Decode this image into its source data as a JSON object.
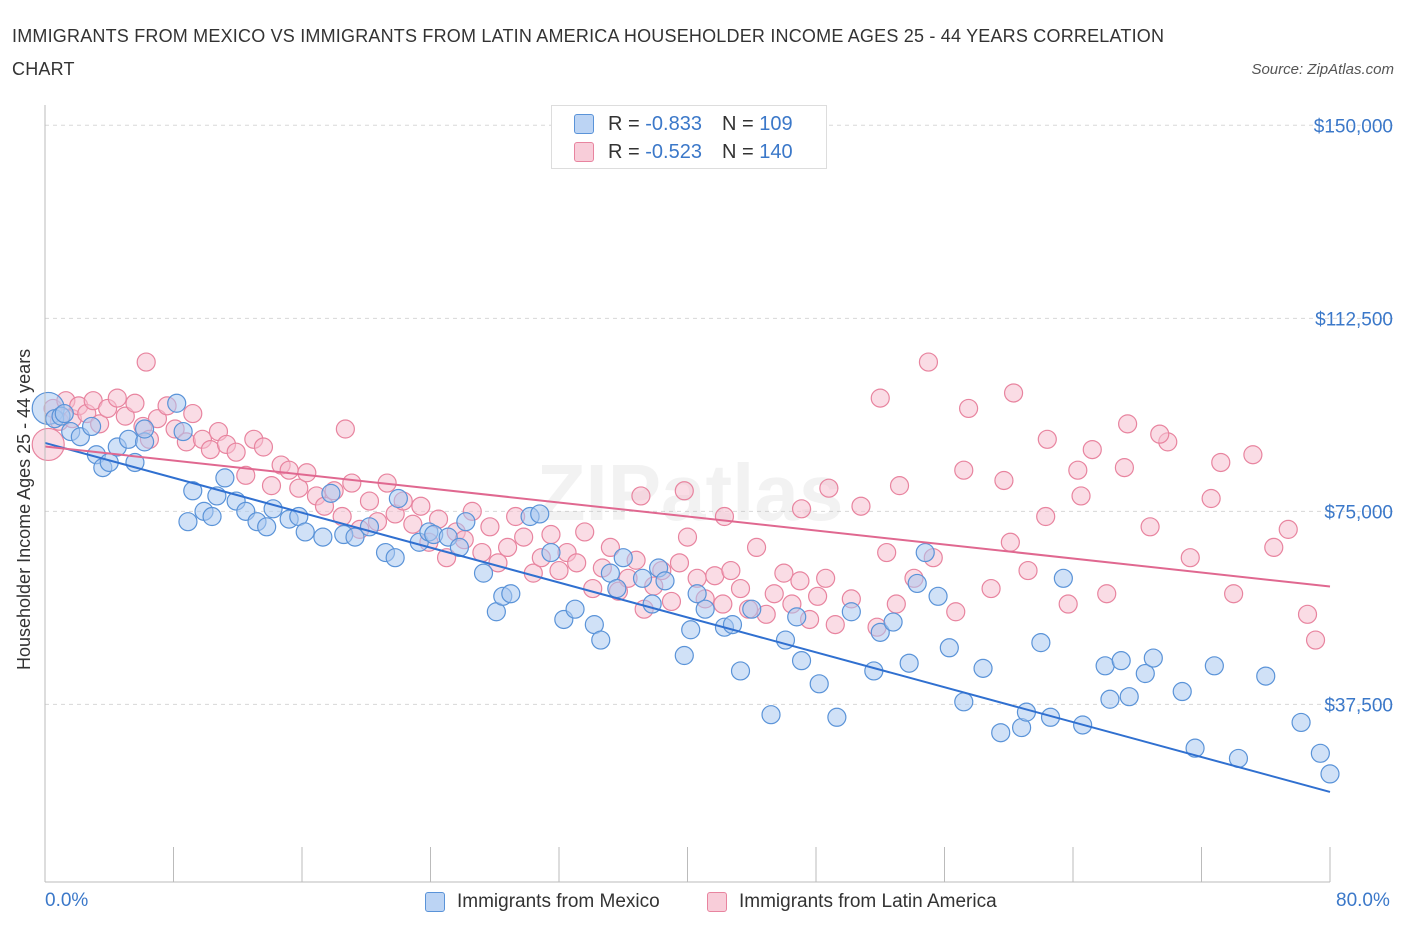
{
  "title": "IMMIGRANTS FROM MEXICO VS IMMIGRANTS FROM LATIN AMERICA HOUSEHOLDER INCOME AGES 25 - 44 YEARS CORRELATION CHART",
  "source": "Source: ZipAtlas.com",
  "legend": {
    "rows": [
      {
        "r_label": "R =",
        "r_value": "-0.833",
        "n_label": "N =",
        "n_value": "109"
      },
      {
        "r_label": "R =",
        "r_value": "-0.523",
        "n_label": "N =",
        "n_value": "140"
      }
    ]
  },
  "colors": {
    "mexico_fill": "#a9c8f0",
    "mexico_stroke": "#5a93d8",
    "mexico_line": "#3070d0",
    "latam_fill": "#f6bfd0",
    "latam_stroke": "#e8849f",
    "latam_line": "#e06890",
    "tick_text": "#3b78c9",
    "grid": "#d8d8d8"
  },
  "chart_data": {
    "type": "scatter",
    "title": "IMMIGRANTS FROM MEXICO VS IMMIGRANTS FROM LATIN AMERICA HOUSEHOLDER INCOME AGES 25 - 44 YEARS CORRELATION CHART",
    "xlabel": "",
    "ylabel": "Householder Income Ages 25 - 44 years",
    "xlim": [
      0,
      80
    ],
    "ylim": [
      3000,
      152000
    ],
    "x_tick_labels": [
      "0.0%",
      "80.0%"
    ],
    "y_ticks": [
      37500,
      75000,
      112500,
      150000
    ],
    "y_tick_labels": [
      "$37,500",
      "$75,000",
      "$112,500",
      "$150,000"
    ],
    "grid": true,
    "watermark": "ZIPatlas",
    "series": [
      {
        "name": "Immigrants from Mexico",
        "r": -0.833,
        "n": 109,
        "trend": [
          [
            0,
            88300
          ],
          [
            80,
            20500
          ]
        ],
        "points": [
          [
            0.2,
            95000
          ],
          [
            0.6,
            93000
          ],
          [
            1.0,
            93500
          ],
          [
            1.6,
            90500
          ],
          [
            2.2,
            89500
          ],
          [
            2.9,
            91500
          ],
          [
            1.2,
            94000
          ],
          [
            3.2,
            86000
          ],
          [
            3.6,
            83500
          ],
          [
            4.0,
            84500
          ],
          [
            4.5,
            87500
          ],
          [
            5.2,
            89000
          ],
          [
            5.6,
            84500
          ],
          [
            6.2,
            88500
          ],
          [
            6.2,
            91000
          ],
          [
            8.2,
            96000
          ],
          [
            8.6,
            90500
          ],
          [
            8.9,
            73000
          ],
          [
            9.2,
            79000
          ],
          [
            9.9,
            75000
          ],
          [
            10.4,
            74000
          ],
          [
            10.7,
            78000
          ],
          [
            11.2,
            81500
          ],
          [
            11.9,
            77000
          ],
          [
            12.5,
            75000
          ],
          [
            13.2,
            73000
          ],
          [
            13.8,
            72000
          ],
          [
            14.2,
            75500
          ],
          [
            15.2,
            73500
          ],
          [
            15.8,
            74000
          ],
          [
            16.2,
            71000
          ],
          [
            17.3,
            70000
          ],
          [
            17.8,
            78500
          ],
          [
            18.6,
            70500
          ],
          [
            19.3,
            70000
          ],
          [
            20.2,
            72000
          ],
          [
            21.2,
            67000
          ],
          [
            21.8,
            66000
          ],
          [
            22.0,
            77500
          ],
          [
            23.3,
            69000
          ],
          [
            23.9,
            71000
          ],
          [
            24.2,
            70500
          ],
          [
            25.1,
            70000
          ],
          [
            25.8,
            68000
          ],
          [
            26.2,
            73000
          ],
          [
            27.3,
            63000
          ],
          [
            28.1,
            55500
          ],
          [
            28.5,
            58500
          ],
          [
            29.0,
            59000
          ],
          [
            30.2,
            74000
          ],
          [
            30.8,
            74500
          ],
          [
            31.5,
            67000
          ],
          [
            32.3,
            54000
          ],
          [
            33.0,
            56000
          ],
          [
            34.2,
            53000
          ],
          [
            34.6,
            50000
          ],
          [
            35.2,
            63000
          ],
          [
            35.6,
            60000
          ],
          [
            36.0,
            66000
          ],
          [
            37.2,
            62000
          ],
          [
            37.8,
            57000
          ],
          [
            38.2,
            64000
          ],
          [
            38.6,
            61500
          ],
          [
            39.8,
            47000
          ],
          [
            40.2,
            52000
          ],
          [
            40.6,
            59000
          ],
          [
            41.1,
            56000
          ],
          [
            42.3,
            52500
          ],
          [
            42.8,
            53000
          ],
          [
            43.3,
            44000
          ],
          [
            44.0,
            56000
          ],
          [
            45.2,
            35500
          ],
          [
            46.1,
            50000
          ],
          [
            46.8,
            54500
          ],
          [
            47.1,
            46000
          ],
          [
            48.2,
            41500
          ],
          [
            49.3,
            35000
          ],
          [
            50.2,
            55500
          ],
          [
            51.6,
            44000
          ],
          [
            52.0,
            51500
          ],
          [
            52.8,
            53500
          ],
          [
            53.8,
            45500
          ],
          [
            54.3,
            61000
          ],
          [
            55.6,
            58500
          ],
          [
            56.3,
            48500
          ],
          [
            57.2,
            38000
          ],
          [
            58.4,
            44500
          ],
          [
            59.5,
            32000
          ],
          [
            60.8,
            33000
          ],
          [
            61.1,
            36000
          ],
          [
            62.0,
            49500
          ],
          [
            62.6,
            35000
          ],
          [
            63.4,
            62000
          ],
          [
            64.6,
            33500
          ],
          [
            66.0,
            45000
          ],
          [
            66.3,
            38500
          ],
          [
            67.0,
            46000
          ],
          [
            67.5,
            39000
          ],
          [
            68.5,
            43500
          ],
          [
            69.0,
            46500
          ],
          [
            70.8,
            40000
          ],
          [
            71.6,
            29000
          ],
          [
            72.8,
            45000
          ],
          [
            74.3,
            27000
          ],
          [
            76.0,
            43000
          ],
          [
            78.2,
            34000
          ],
          [
            79.4,
            28000
          ],
          [
            80.0,
            24000
          ],
          [
            54.8,
            67000
          ]
        ]
      },
      {
        "name": "Immigrants from Latin America",
        "r": -0.523,
        "n": 140,
        "trend": [
          [
            0,
            87600
          ],
          [
            80,
            60400
          ]
        ],
        "points": [
          [
            0.2,
            88000
          ],
          [
            0.5,
            95000
          ],
          [
            0.9,
            92500
          ],
          [
            1.3,
            96500
          ],
          [
            1.7,
            93000
          ],
          [
            2.1,
            95500
          ],
          [
            2.6,
            94000
          ],
          [
            3.0,
            96500
          ],
          [
            3.4,
            92000
          ],
          [
            3.9,
            95000
          ],
          [
            4.5,
            97000
          ],
          [
            5.0,
            93500
          ],
          [
            5.6,
            96000
          ],
          [
            6.1,
            91500
          ],
          [
            6.5,
            89000
          ],
          [
            7.0,
            93000
          ],
          [
            7.6,
            95500
          ],
          [
            8.1,
            91000
          ],
          [
            8.8,
            88500
          ],
          [
            9.2,
            94000
          ],
          [
            9.8,
            89000
          ],
          [
            10.3,
            87000
          ],
          [
            10.8,
            90500
          ],
          [
            11.3,
            88000
          ],
          [
            11.9,
            86500
          ],
          [
            12.5,
            82000
          ],
          [
            13.0,
            89000
          ],
          [
            13.6,
            87500
          ],
          [
            14.1,
            80000
          ],
          [
            14.7,
            84000
          ],
          [
            15.2,
            83000
          ],
          [
            15.8,
            79500
          ],
          [
            16.3,
            82500
          ],
          [
            16.9,
            78000
          ],
          [
            17.4,
            76000
          ],
          [
            18.0,
            79000
          ],
          [
            18.5,
            74000
          ],
          [
            19.1,
            80500
          ],
          [
            19.6,
            71500
          ],
          [
            20.2,
            77000
          ],
          [
            20.7,
            73000
          ],
          [
            21.3,
            80500
          ],
          [
            21.8,
            74500
          ],
          [
            22.3,
            77000
          ],
          [
            22.9,
            72500
          ],
          [
            23.4,
            76000
          ],
          [
            23.9,
            69000
          ],
          [
            24.5,
            73500
          ],
          [
            25.0,
            66000
          ],
          [
            25.6,
            71000
          ],
          [
            26.1,
            69500
          ],
          [
            26.6,
            75000
          ],
          [
            27.2,
            67000
          ],
          [
            27.7,
            72000
          ],
          [
            28.2,
            65000
          ],
          [
            28.8,
            68000
          ],
          [
            29.3,
            74000
          ],
          [
            29.8,
            70000
          ],
          [
            30.4,
            63000
          ],
          [
            30.9,
            66000
          ],
          [
            31.5,
            70500
          ],
          [
            32.0,
            63500
          ],
          [
            32.5,
            67000
          ],
          [
            33.1,
            65000
          ],
          [
            33.6,
            71000
          ],
          [
            34.1,
            60000
          ],
          [
            34.7,
            64000
          ],
          [
            35.2,
            68000
          ],
          [
            35.7,
            59500
          ],
          [
            36.3,
            62000
          ],
          [
            36.8,
            65500
          ],
          [
            37.3,
            56000
          ],
          [
            37.9,
            60500
          ],
          [
            38.4,
            63500
          ],
          [
            39.0,
            57500
          ],
          [
            39.5,
            65000
          ],
          [
            40.0,
            70000
          ],
          [
            40.6,
            62000
          ],
          [
            41.1,
            58000
          ],
          [
            41.7,
            62500
          ],
          [
            42.2,
            57000
          ],
          [
            42.7,
            63500
          ],
          [
            43.3,
            60000
          ],
          [
            43.8,
            56000
          ],
          [
            44.3,
            68000
          ],
          [
            44.9,
            55000
          ],
          [
            45.4,
            59000
          ],
          [
            46.0,
            63000
          ],
          [
            46.5,
            57000
          ],
          [
            47.0,
            61500
          ],
          [
            47.6,
            54000
          ],
          [
            48.1,
            58500
          ],
          [
            48.6,
            62000
          ],
          [
            49.2,
            53000
          ],
          [
            50.2,
            58000
          ],
          [
            50.8,
            76000
          ],
          [
            51.8,
            52500
          ],
          [
            52.4,
            67000
          ],
          [
            53.0,
            57000
          ],
          [
            54.1,
            62000
          ],
          [
            55.3,
            66000
          ],
          [
            56.7,
            55500
          ],
          [
            57.2,
            83000
          ],
          [
            58.9,
            60000
          ],
          [
            60.1,
            69000
          ],
          [
            61.2,
            63500
          ],
          [
            62.3,
            74000
          ],
          [
            63.7,
            57000
          ],
          [
            64.5,
            78000
          ],
          [
            66.1,
            59000
          ],
          [
            67.2,
            83500
          ],
          [
            68.8,
            72000
          ],
          [
            69.9,
            88500
          ],
          [
            71.3,
            66000
          ],
          [
            72.6,
            77500
          ],
          [
            73.2,
            84500
          ],
          [
            74.0,
            59000
          ],
          [
            75.2,
            86000
          ],
          [
            76.5,
            68000
          ],
          [
            77.4,
            71500
          ],
          [
            78.6,
            55000
          ],
          [
            79.1,
            50000
          ],
          [
            52.0,
            97000
          ],
          [
            55.0,
            104000
          ],
          [
            57.5,
            95000
          ],
          [
            60.3,
            98000
          ],
          [
            62.4,
            89000
          ],
          [
            65.2,
            87000
          ],
          [
            67.4,
            92000
          ],
          [
            69.4,
            90000
          ],
          [
            64.3,
            83000
          ],
          [
            59.7,
            81000
          ],
          [
            53.2,
            80000
          ],
          [
            48.8,
            79500
          ],
          [
            47.1,
            75500
          ],
          [
            42.3,
            74000
          ],
          [
            39.8,
            79000
          ],
          [
            37.1,
            78000
          ],
          [
            6.3,
            104000
          ],
          [
            18.7,
            91000
          ]
        ]
      }
    ]
  },
  "bottom_legend": {
    "items": [
      "Immigrants from Mexico",
      "Immigrants from Latin America"
    ]
  }
}
